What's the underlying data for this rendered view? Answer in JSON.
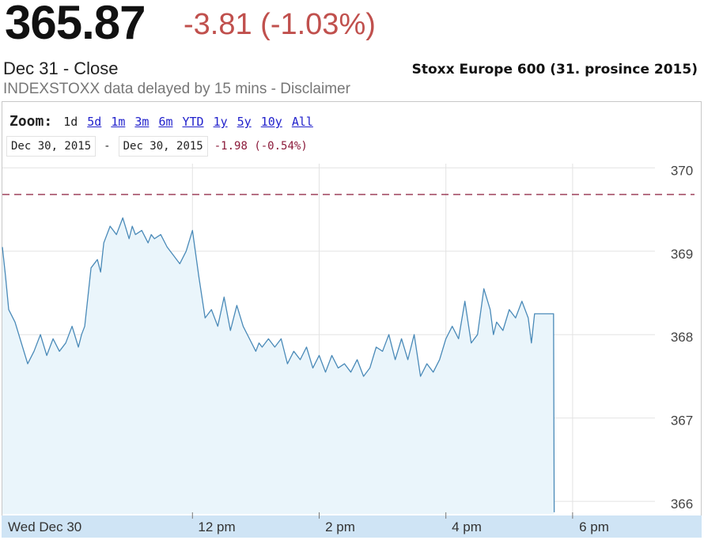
{
  "header": {
    "price": "365.87",
    "change": "-3.81 (-1.03%)",
    "close_label": "Dec 31 - Close",
    "delay_notice": "INDEXSTOXX data delayed by 15 mins - Disclaimer",
    "chart_title": "Stoxx Europe 600 (31. prosince 2015)"
  },
  "zoom": {
    "label": "Zoom:",
    "options": [
      "1d",
      "5d",
      "1m",
      "3m",
      "6m",
      "YTD",
      "1y",
      "5y",
      "10y",
      "All"
    ],
    "active": "1d"
  },
  "range": {
    "from": "Dec 30, 2015",
    "separator": "-",
    "to": "Dec 30, 2015",
    "change": "-1.98 (-0.54%)"
  },
  "colors": {
    "line": "#4a8ab8",
    "fill": "#eaf5fb",
    "change_negative": "#c0504d",
    "reference_line": "#8b1a3a",
    "axis_band": "#cfe4f5"
  },
  "chart_data": {
    "type": "area",
    "title": "",
    "xlabel": "",
    "ylabel": "",
    "ylim": [
      365.85,
      370.05
    ],
    "y_ticks": [
      366,
      367,
      368,
      369,
      370
    ],
    "x_ticks": [
      "Wed Dec 30",
      "12 pm",
      "2 pm",
      "4 pm",
      "6 pm"
    ],
    "x_tick_hours": [
      9.0,
      12.0,
      14.0,
      16.0,
      18.0
    ],
    "previous_close": 369.68,
    "grid": true,
    "series": [
      {
        "x": [
          9.0,
          9.05,
          9.1,
          9.2,
          9.3,
          9.4,
          9.5,
          9.6,
          9.7,
          9.75,
          9.8,
          9.9,
          10.0,
          10.1,
          10.2,
          10.25,
          10.3,
          10.4,
          10.5,
          10.55,
          10.6,
          10.7,
          10.8,
          10.9,
          11.0,
          11.05,
          11.1,
          11.2,
          11.3,
          11.35,
          11.4,
          11.5,
          11.6,
          11.7,
          11.8,
          11.9,
          12.0,
          12.1,
          12.2,
          12.3,
          12.4,
          12.5,
          12.6,
          12.7,
          12.8,
          12.9,
          13.0,
          13.05,
          13.1,
          13.2,
          13.3,
          13.4,
          13.5,
          13.6,
          13.7,
          13.8,
          13.9,
          14.0,
          14.1,
          14.2,
          14.3,
          14.4,
          14.5,
          14.6,
          14.7,
          14.8,
          14.9,
          15.0,
          15.1,
          15.2,
          15.3,
          15.4,
          15.5,
          15.6,
          15.7,
          15.8,
          15.9,
          16.0,
          16.1,
          16.2,
          16.3,
          16.4,
          16.5,
          16.6,
          16.7,
          16.75,
          16.8,
          16.9,
          17.0,
          17.1,
          17.2,
          17.3,
          17.35,
          17.4,
          17.6,
          17.7,
          17.71
        ],
        "y": [
          369.05,
          368.7,
          368.3,
          368.15,
          367.9,
          367.65,
          367.8,
          368.0,
          367.75,
          367.85,
          367.95,
          367.8,
          367.9,
          368.1,
          367.85,
          368.0,
          368.1,
          368.8,
          368.9,
          368.75,
          369.1,
          369.3,
          369.2,
          369.4,
          369.15,
          369.3,
          369.2,
          369.25,
          369.1,
          369.2,
          369.15,
          369.2,
          369.05,
          368.95,
          368.85,
          369.0,
          369.25,
          368.7,
          368.2,
          368.3,
          368.1,
          368.45,
          368.05,
          368.35,
          368.1,
          367.95,
          367.8,
          367.9,
          367.85,
          367.95,
          367.85,
          367.95,
          367.65,
          367.8,
          367.7,
          367.85,
          367.6,
          367.75,
          367.55,
          367.75,
          367.6,
          367.65,
          367.55,
          367.7,
          367.5,
          367.6,
          367.85,
          367.8,
          368.0,
          367.7,
          367.95,
          367.7,
          368.0,
          367.5,
          367.65,
          367.55,
          367.7,
          367.95,
          368.1,
          367.95,
          368.4,
          367.9,
          368.0,
          368.55,
          368.3,
          368.0,
          368.15,
          368.05,
          368.3,
          368.2,
          368.4,
          368.2,
          367.9,
          368.25,
          368.25,
          368.25,
          365.87
        ]
      }
    ]
  }
}
